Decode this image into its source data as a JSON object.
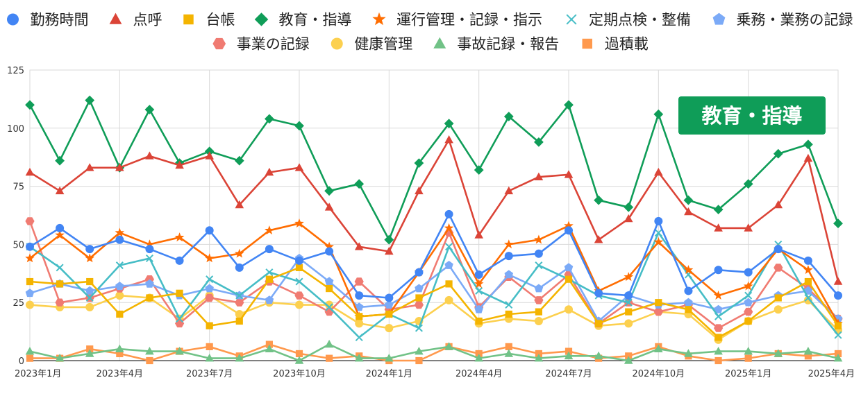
{
  "chart_data": {
    "type": "line",
    "x": [
      "2023年1月",
      "2023年2月",
      "2023年3月",
      "2023年4月",
      "2023年5月",
      "2023年6月",
      "2023年7月",
      "2023年8月",
      "2023年9月",
      "2023年10月",
      "2023年11月",
      "2023年12月",
      "2024年1月",
      "2024年2月",
      "2024年3月",
      "2024年4月",
      "2024年5月",
      "2024年6月",
      "2024年7月",
      "2024年8月",
      "2024年9月",
      "2024年10月",
      "2024年11月",
      "2024年12月",
      "2025年1月",
      "2025年2月",
      "2025年3月",
      "2025年4月"
    ],
    "x_tick_labels": [
      "2023年1月",
      "2023年4月",
      "2023年7月",
      "2023年10月",
      "2024年1月",
      "2024年4月",
      "2024年7月",
      "2024年10月",
      "2025年1月",
      "2025年4月"
    ],
    "y_ticks": [
      0,
      25,
      50,
      75,
      100,
      125
    ],
    "ylim": [
      0,
      125
    ],
    "grid": true,
    "legend_position": "top",
    "callout": {
      "text": "教育・指導",
      "color": "#0f9d58"
    },
    "series": [
      {
        "name": "勤務時間",
        "color": "#4285f4",
        "marker": "circle",
        "values": [
          49,
          57,
          48,
          52,
          48,
          43,
          56,
          40,
          48,
          43,
          47,
          28,
          27,
          38,
          63,
          37,
          45,
          46,
          56,
          29,
          28,
          60,
          30,
          39,
          38,
          48,
          43,
          28
        ]
      },
      {
        "name": "点呼",
        "color": "#db4437",
        "marker": "triangle",
        "values": [
          81,
          73,
          83,
          83,
          88,
          84,
          88,
          67,
          81,
          83,
          66,
          49,
          47,
          73,
          95,
          54,
          73,
          79,
          80,
          52,
          61,
          81,
          64,
          57,
          57,
          67,
          87,
          34
        ]
      },
      {
        "name": "台帳",
        "color": "#f4b400",
        "marker": "square",
        "values": [
          34,
          33,
          34,
          20,
          27,
          29,
          15,
          17,
          35,
          40,
          31,
          19,
          20,
          27,
          33,
          17,
          20,
          21,
          35,
          16,
          21,
          25,
          22,
          10,
          17,
          27,
          34,
          15
        ]
      },
      {
        "name": "教育・指導",
        "color": "#0f9d58",
        "marker": "diamond",
        "values": [
          110,
          86,
          112,
          83,
          108,
          85,
          90,
          86,
          104,
          101,
          73,
          76,
          52,
          85,
          102,
          82,
          105,
          94,
          110,
          69,
          66,
          106,
          69,
          65,
          76,
          89,
          93,
          59
        ]
      },
      {
        "name": "運行管理・記録・指示",
        "color": "#ff6d01",
        "marker": "star",
        "values": [
          44,
          54,
          44,
          55,
          50,
          53,
          44,
          46,
          56,
          59,
          49,
          19,
          20,
          38,
          57,
          33,
          50,
          52,
          58,
          30,
          36,
          51,
          39,
          28,
          32,
          48,
          39,
          16
        ]
      },
      {
        "name": "定期点検・整備",
        "color": "#46bdc6",
        "marker": "cross",
        "values": [
          49,
          40,
          27,
          41,
          44,
          18,
          35,
          28,
          38,
          34,
          23,
          10,
          20,
          14,
          49,
          30,
          24,
          41,
          35,
          28,
          25,
          55,
          37,
          19,
          28,
          50,
          27,
          11
        ]
      },
      {
        "name": "乗務・業務の記録",
        "color": "#7baaf7",
        "marker": "pentagon",
        "values": [
          29,
          33,
          30,
          32,
          33,
          28,
          31,
          28,
          26,
          44,
          34,
          23,
          24,
          31,
          41,
          22,
          37,
          31,
          40,
          17,
          28,
          24,
          25,
          22,
          25,
          28,
          30,
          18
        ]
      },
      {
        "name": "事業の記録",
        "color": "#f07b72",
        "marker": "hexagon",
        "values": [
          60,
          25,
          27,
          31,
          35,
          16,
          27,
          25,
          34,
          28,
          21,
          34,
          22,
          24,
          55,
          23,
          36,
          26,
          37,
          16,
          25,
          21,
          24,
          14,
          21,
          40,
          31,
          18
        ]
      },
      {
        "name": "健康管理",
        "color": "#fcd04f",
        "marker": "circle",
        "values": [
          24,
          23,
          23,
          28,
          27,
          18,
          28,
          20,
          25,
          24,
          24,
          16,
          14,
          17,
          26,
          16,
          18,
          17,
          22,
          15,
          16,
          21,
          20,
          9,
          17,
          22,
          26,
          13
        ]
      },
      {
        "name": "事故記録・報告",
        "color": "#71c287",
        "marker": "triangle",
        "values": [
          4,
          1,
          3,
          5,
          4,
          4,
          1,
          1,
          5,
          0,
          7,
          1,
          1,
          4,
          6,
          1,
          3,
          1,
          2,
          2,
          0,
          5,
          3,
          4,
          4,
          3,
          4,
          1
        ]
      },
      {
        "name": "過積載",
        "color": "#ff994d",
        "marker": "square",
        "values": [
          1,
          1,
          5,
          3,
          0,
          4,
          6,
          2,
          7,
          3,
          1,
          2,
          0,
          0,
          6,
          3,
          6,
          3,
          4,
          1,
          2,
          6,
          2,
          0,
          1,
          3,
          2,
          3
        ]
      }
    ]
  }
}
